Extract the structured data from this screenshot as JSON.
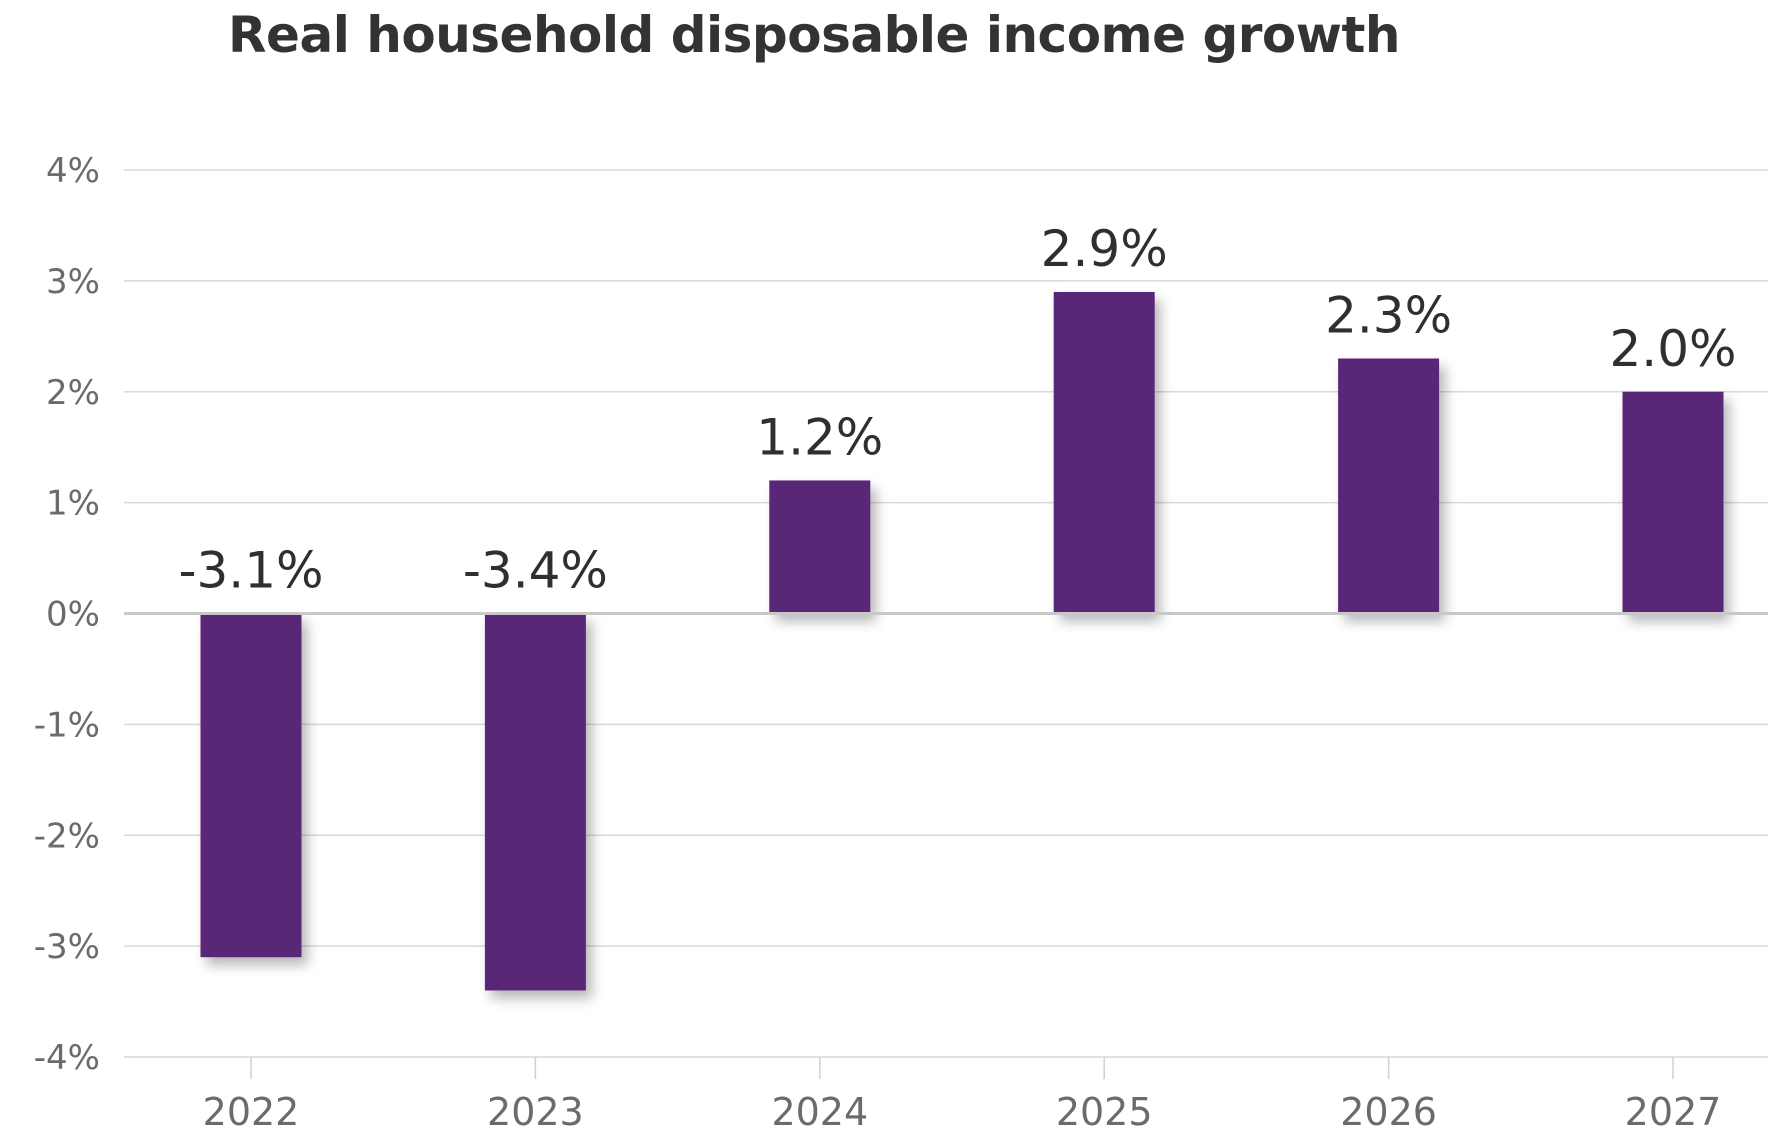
{
  "chart_data": {
    "type": "bar",
    "title": "Real household disposable income growth",
    "categories": [
      "2022",
      "2023",
      "2024",
      "2025",
      "2026",
      "2027"
    ],
    "values": [
      -3.1,
      -3.4,
      1.2,
      2.9,
      2.3,
      2.0
    ],
    "data_labels": [
      "-3.1%",
      "-3.4%",
      "1.2%",
      "2.9%",
      "2.3%",
      "2.0%"
    ],
    "yticks": [
      4,
      3,
      2,
      1,
      0,
      -1,
      -2,
      -3,
      -4
    ],
    "ytick_labels": [
      "4%",
      "3%",
      "2%",
      "1%",
      "0%",
      "-1%",
      "-2%",
      "-3%",
      "-4%"
    ],
    "ylim": [
      -4,
      4
    ],
    "xlabel": "",
    "ylabel": "",
    "grid": true,
    "bar_color": "#5a2878"
  }
}
